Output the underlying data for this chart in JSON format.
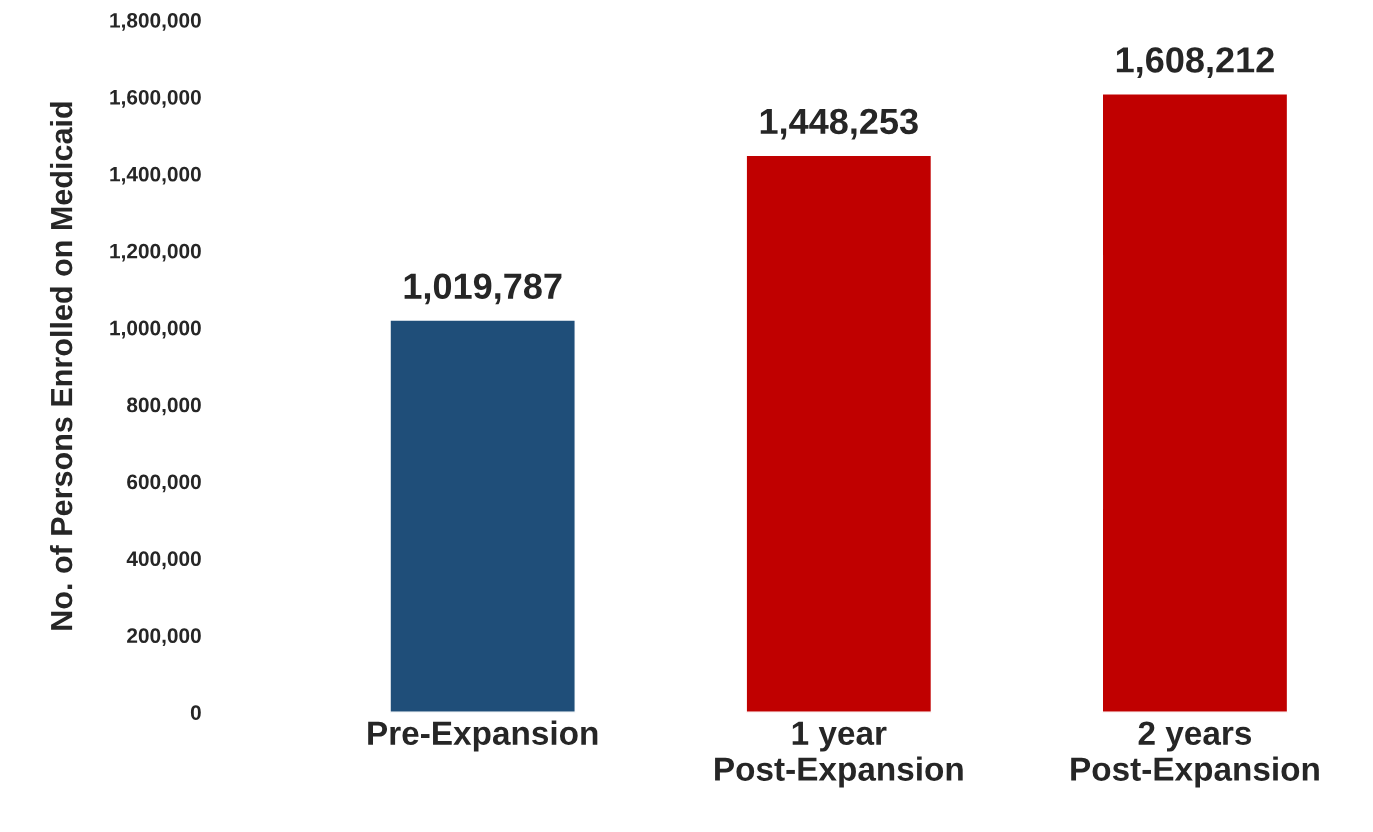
{
  "chart_data": {
    "type": "bar",
    "ylabel": "No. of Persons Enrolled on Medicaid",
    "categories": [
      "Pre-Expansion",
      "1 year\nPost-Expansion",
      "2 years\nPost-Expansion"
    ],
    "values": [
      1019787,
      1448253,
      1608212
    ],
    "colors": [
      "#1f4e79",
      "#c00000",
      "#c00000"
    ],
    "ylim": [
      0,
      1800000
    ],
    "yticks": [
      0,
      {
        "value": 200000,
        "label": "200,000"
      },
      {
        "value": 400000,
        "label": "400,000"
      },
      {
        "value": 600000,
        "label": "600,000"
      },
      {
        "value": 800000,
        "label": "800,000"
      },
      {
        "value": 1000000,
        "label": "1,000,000"
      },
      {
        "value": 1200000,
        "label": "1,200,000"
      },
      {
        "value": 1400000,
        "label": "1,400,000"
      },
      {
        "value": 1600000,
        "label": "1,600,000"
      },
      {
        "value": 1800000,
        "label": "1,800,000"
      }
    ],
    "value_labels": [
      "1,019,787",
      "1,448,253",
      "1,608,212"
    ],
    "grid": false,
    "legend": false
  }
}
